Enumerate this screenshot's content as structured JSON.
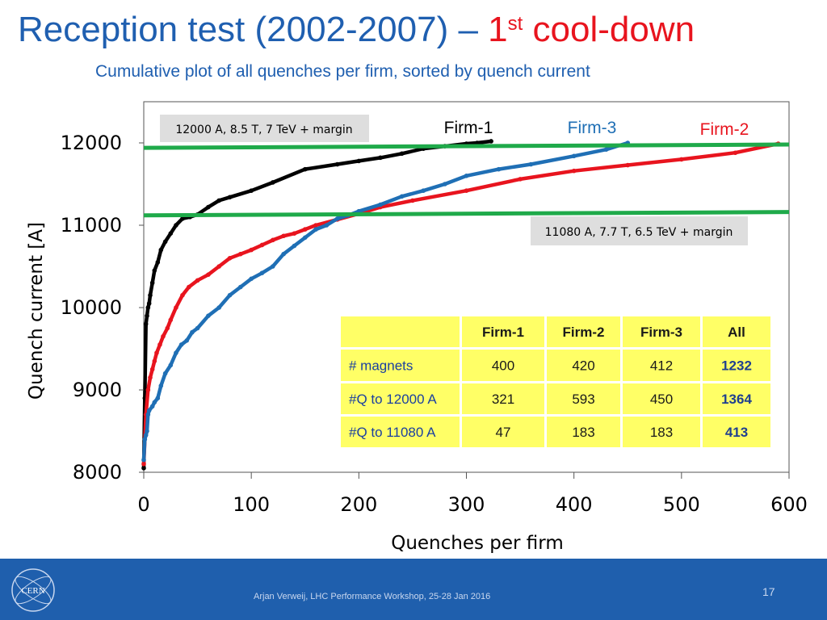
{
  "header": {
    "title_main": "Reception test (2002-2007) – ",
    "title_one": "1",
    "title_sup": "st",
    "title_end": " cool-down",
    "subtitle": "Cumulative plot of all quenches per firm, sorted by quench current"
  },
  "chart_data": {
    "type": "scatter",
    "xlabel": "Quenches per firm",
    "ylabel": "Quench current [A]",
    "xlim": [
      0,
      600
    ],
    "ylim": [
      8000,
      12500
    ],
    "xticks": [
      "0",
      "100",
      "200",
      "300",
      "400",
      "500",
      "600"
    ],
    "yticks": [
      "8000",
      "9000",
      "10000",
      "11000",
      "12000"
    ],
    "series": [
      {
        "name": "Firm-1",
        "color": "#000000",
        "x": [
          0,
          1,
          2,
          3,
          4,
          5,
          6,
          8,
          10,
          13,
          16,
          20,
          25,
          30,
          36,
          43,
          50,
          60,
          70,
          80,
          100,
          120,
          150,
          180,
          200,
          220,
          240,
          260,
          280,
          300,
          310,
          323
        ],
        "y": [
          8050,
          8900,
          9800,
          9900,
          10000,
          10050,
          10150,
          10300,
          10450,
          10550,
          10700,
          10800,
          10900,
          11000,
          11080,
          11100,
          11130,
          11220,
          11300,
          11340,
          11420,
          11520,
          11680,
          11740,
          11780,
          11820,
          11870,
          11930,
          11960,
          11990,
          12000,
          12020
        ]
      },
      {
        "name": "Firm-2",
        "color": "#e8141e",
        "x": [
          0,
          2,
          4,
          6,
          8,
          10,
          12,
          15,
          18,
          22,
          25,
          30,
          36,
          42,
          50,
          60,
          70,
          80,
          90,
          100,
          110,
          120,
          130,
          140,
          150,
          160,
          180,
          200,
          220,
          250,
          300,
          350,
          400,
          450,
          500,
          550,
          590
        ],
        "y": [
          8100,
          8700,
          9000,
          9150,
          9250,
          9350,
          9450,
          9550,
          9650,
          9750,
          9850,
          10000,
          10150,
          10250,
          10330,
          10400,
          10500,
          10600,
          10650,
          10700,
          10760,
          10820,
          10870,
          10900,
          10950,
          11000,
          11070,
          11140,
          11220,
          11300,
          11420,
          11560,
          11660,
          11730,
          11800,
          11880,
          11990
        ]
      },
      {
        "name": "Firm-3",
        "color": "#1f6fb5",
        "x": [
          0,
          1,
          2,
          3,
          4,
          5,
          8,
          10,
          13,
          16,
          20,
          25,
          30,
          35,
          40,
          45,
          50,
          60,
          70,
          80,
          90,
          100,
          110,
          120,
          130,
          140,
          150,
          160,
          170,
          180,
          190,
          200,
          220,
          240,
          260,
          280,
          300,
          330,
          360,
          400,
          430,
          450
        ],
        "y": [
          8150,
          8400,
          8450,
          8500,
          8700,
          8750,
          8800,
          8850,
          8900,
          9050,
          9200,
          9300,
          9450,
          9550,
          9600,
          9700,
          9750,
          9900,
          10000,
          10150,
          10250,
          10350,
          10420,
          10500,
          10650,
          10750,
          10850,
          10950,
          11000,
          11080,
          11120,
          11170,
          11250,
          11350,
          11420,
          11500,
          11600,
          11680,
          11740,
          11840,
          11920,
          12000
        ]
      }
    ],
    "series_labels": [
      "Firm-1",
      "Firm-3",
      "Firm-2"
    ],
    "hlines": [
      {
        "label": "12000 A, 8.5 T, 7 TeV + margin",
        "y_start": 11940,
        "y_end": 11980,
        "color": "#1faa4a"
      },
      {
        "label": "11080 A, 7.7 T, 6.5 TeV + margin",
        "y_start": 11120,
        "y_end": 11160,
        "color": "#1faa4a"
      }
    ],
    "table": {
      "headers": [
        "",
        "Firm-1",
        "Firm-2",
        "Firm-3",
        "All"
      ],
      "rows": [
        [
          "# magnets",
          "400",
          "420",
          "412",
          "1232"
        ],
        [
          "#Q to 12000 A",
          "321",
          "593",
          "450",
          "1364"
        ],
        [
          "#Q to 11080 A",
          "47",
          "183",
          "183",
          "413"
        ]
      ]
    }
  },
  "footer": {
    "text": "Arjan Verweij, LHC Performance Workshop, 25-28 Jan 2016",
    "page": "17",
    "logo_text": "CERN"
  },
  "colors": {
    "title": "#1f5fb0",
    "accent_red": "#e8141e",
    "footer_bg": "#1f5fad",
    "table_bg": "#ffff66"
  }
}
